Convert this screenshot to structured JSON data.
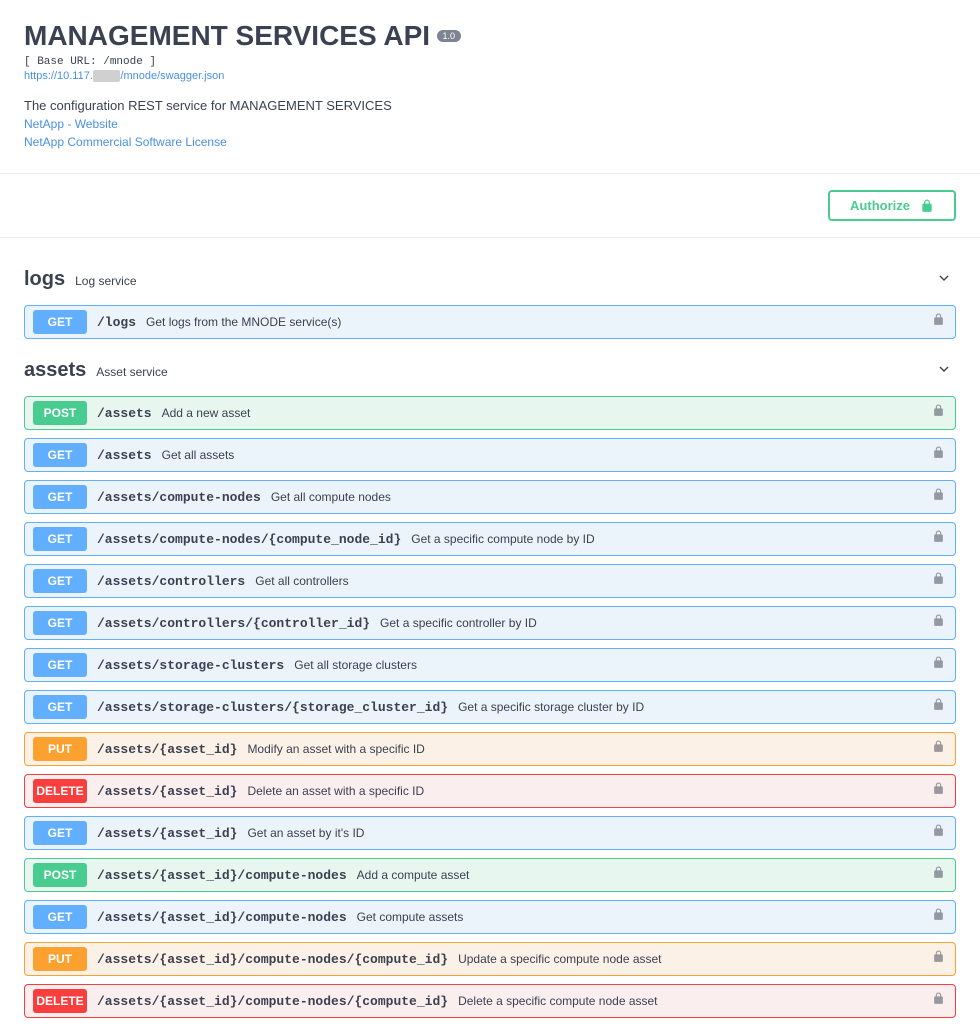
{
  "header": {
    "title": "MANAGEMENT SERVICES API",
    "version": "1.0",
    "base_url_prefix": "[ Base URL: ",
    "base_url": "/mnode",
    "base_url_suffix": " ]",
    "swagger_link_prefix": "https://10.117.",
    "swagger_link_suffix": "/mnode/swagger.json",
    "description": "The configuration REST service for MANAGEMENT SERVICES",
    "link1": "NetApp - Website",
    "link2": "NetApp Commercial Software License"
  },
  "authorize": {
    "label": "Authorize"
  },
  "colors": {
    "get": "#61affe",
    "post": "#49cc90",
    "put": "#fca130",
    "delete": "#f93e3e",
    "get_bg": "#ebf3fb",
    "post_bg": "#e8f6f0",
    "put_bg": "#fbf1e6",
    "delete_bg": "#fbeeee"
  },
  "tags": [
    {
      "name": "logs",
      "desc": "Log service",
      "ops": [
        {
          "method": "GET",
          "path": "/logs",
          "desc": "Get logs from the MNODE service(s)"
        }
      ]
    },
    {
      "name": "assets",
      "desc": "Asset service",
      "ops": [
        {
          "method": "POST",
          "path": "/assets",
          "desc": "Add a new asset"
        },
        {
          "method": "GET",
          "path": "/assets",
          "desc": "Get all assets"
        },
        {
          "method": "GET",
          "path": "/assets/compute-nodes",
          "desc": "Get all compute nodes"
        },
        {
          "method": "GET",
          "path": "/assets/compute-nodes/{compute_node_id}",
          "desc": "Get a specific compute node by ID"
        },
        {
          "method": "GET",
          "path": "/assets/controllers",
          "desc": "Get all controllers"
        },
        {
          "method": "GET",
          "path": "/assets/controllers/{controller_id}",
          "desc": "Get a specific controller by ID"
        },
        {
          "method": "GET",
          "path": "/assets/storage-clusters",
          "desc": "Get all storage clusters"
        },
        {
          "method": "GET",
          "path": "/assets/storage-clusters/{storage_cluster_id}",
          "desc": "Get a specific storage cluster by ID"
        },
        {
          "method": "PUT",
          "path": "/assets/{asset_id}",
          "desc": "Modify an asset with a specific ID"
        },
        {
          "method": "DELETE",
          "path": "/assets/{asset_id}",
          "desc": "Delete an asset with a specific ID"
        },
        {
          "method": "GET",
          "path": "/assets/{asset_id}",
          "desc": "Get an asset by it's ID"
        },
        {
          "method": "POST",
          "path": "/assets/{asset_id}/compute-nodes",
          "desc": "Add a compute asset"
        },
        {
          "method": "GET",
          "path": "/assets/{asset_id}/compute-nodes",
          "desc": "Get compute assets"
        },
        {
          "method": "PUT",
          "path": "/assets/{asset_id}/compute-nodes/{compute_id}",
          "desc": "Update a specific compute node asset"
        },
        {
          "method": "DELETE",
          "path": "/assets/{asset_id}/compute-nodes/{compute_id}",
          "desc": "Delete a specific compute node asset"
        }
      ]
    }
  ]
}
